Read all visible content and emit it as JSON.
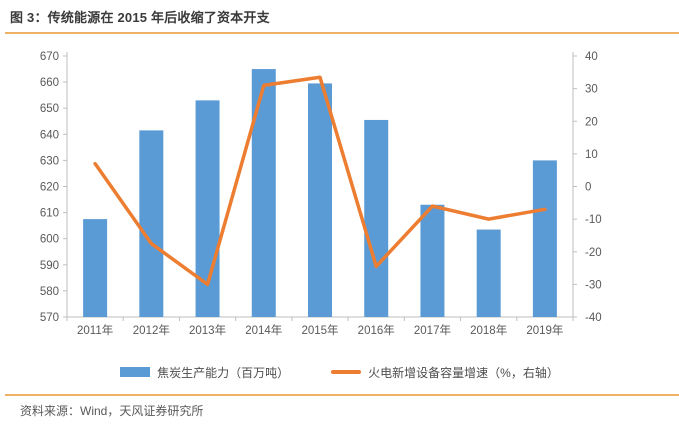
{
  "header": {
    "title": "图 3：传统能源在 2015 年后收缩了资本开支"
  },
  "footer": {
    "source": "资料来源：Wind，天风证券研究所"
  },
  "colors": {
    "bar": "#5b9bd5",
    "line": "#ed7d31",
    "separator": "#eeb266",
    "axis_text": "#595959",
    "axis_line": "#bfbfbf",
    "title_text": "#3a3a3a"
  },
  "chart_data": {
    "type": "bar",
    "subtype": "combo-bar-line",
    "title": "图 3：传统能源在 2015 年后收缩了资本开支",
    "categories": [
      "2011年",
      "2012年",
      "2013年",
      "2014年",
      "2015年",
      "2016年",
      "2017年",
      "2018年",
      "2019年"
    ],
    "series": [
      {
        "name": "焦炭生产能力（百万吨）",
        "type": "bar",
        "axis": "left",
        "values": [
          607.5,
          641.5,
          653,
          665,
          659.5,
          645.5,
          613,
          603.5,
          630
        ]
      },
      {
        "name": "火电新增设备容量增速（%，右轴）",
        "type": "line",
        "axis": "right",
        "values": [
          7,
          -17.5,
          -30,
          31,
          33.5,
          -24.5,
          -6,
          -10,
          -7
        ]
      }
    ],
    "left_axis": {
      "min": 570,
      "max": 670,
      "step": 10
    },
    "right_axis": {
      "min": -40,
      "max": 40,
      "step": 10
    },
    "legend_position": "bottom",
    "grid": false
  }
}
